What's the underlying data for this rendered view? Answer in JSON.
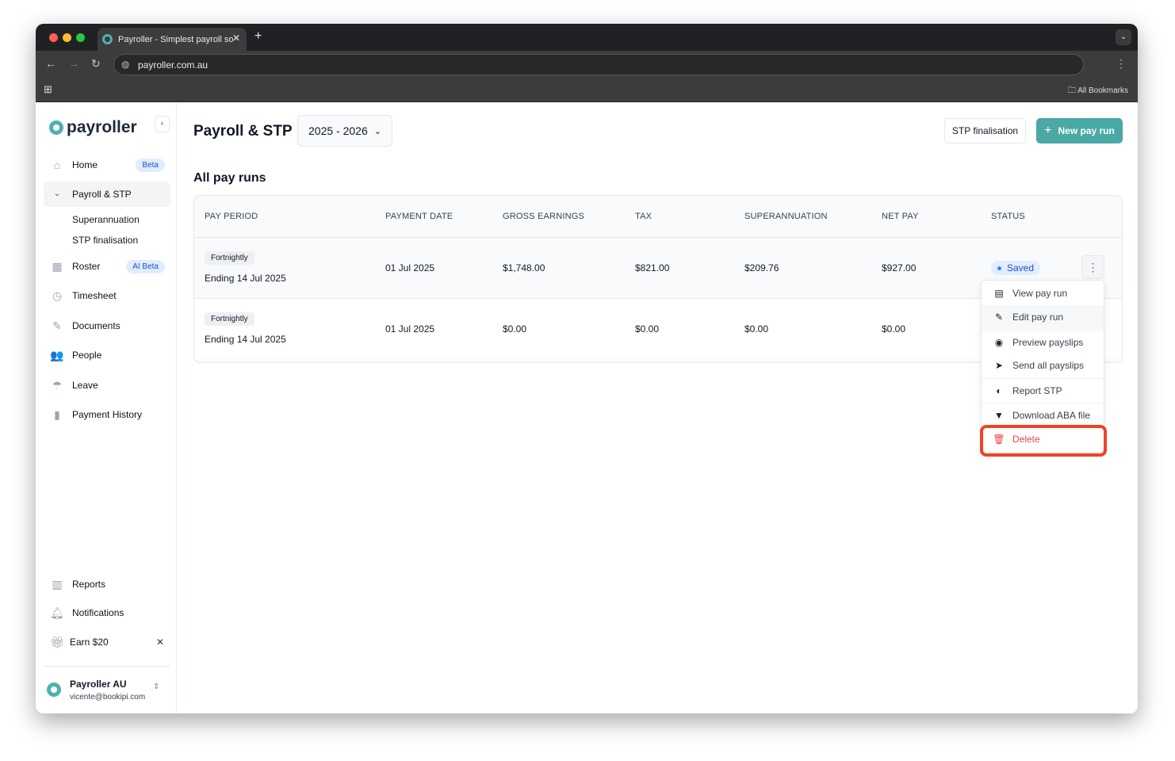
{
  "browser": {
    "tab_title": "Payroller - Simplest payroll so",
    "url": "payroller.com.au",
    "bookmarks_label": "All Bookmarks"
  },
  "sidebar": {
    "logo": "payroller",
    "items": [
      {
        "label": "Home",
        "badge": "Beta"
      },
      {
        "label": "Payroll & STP"
      },
      {
        "label": "Superannuation"
      },
      {
        "label": "STP finalisation"
      },
      {
        "label": "Roster",
        "badge": "AI Beta"
      },
      {
        "label": "Timesheet"
      },
      {
        "label": "Documents"
      },
      {
        "label": "People"
      },
      {
        "label": "Leave"
      },
      {
        "label": "Payment History"
      }
    ],
    "bottom": [
      {
        "label": "Reports"
      },
      {
        "label": "Notifications"
      },
      {
        "label": "Earn $20"
      }
    ],
    "account": {
      "name": "Payroller AU",
      "email": "vicente@bookipi.com"
    }
  },
  "header": {
    "title": "Payroll & STP",
    "year": "2025 - 2026",
    "stp_button": "STP finalisation",
    "new_button": "New pay run"
  },
  "section_title": "All pay runs",
  "table": {
    "columns": [
      "PAY PERIOD",
      "PAYMENT DATE",
      "GROSS EARNINGS",
      "TAX",
      "SUPERANNUATION",
      "NET PAY",
      "STATUS"
    ],
    "rows": [
      {
        "frequency": "Fortnightly",
        "period": "Ending 14 Jul 2025",
        "payment_date": "01 Jul 2025",
        "gross": "$1,748.00",
        "tax": "$821.00",
        "super": "$209.76",
        "net": "$927.00",
        "status": "Saved"
      },
      {
        "frequency": "Fortnightly",
        "period": "Ending 14 Jul 2025",
        "payment_date": "01 Jul 2025",
        "gross": "$0.00",
        "tax": "$0.00",
        "super": "$0.00",
        "net": "$0.00"
      }
    ]
  },
  "menu": [
    "View pay run",
    "Edit pay run",
    "Preview payslips",
    "Send all payslips",
    "Report STP",
    "Download ABA file",
    "Delete"
  ],
  "colors": {
    "brand": "#4aa8a5",
    "danger": "#ef4444",
    "highlight": "#ef4423"
  }
}
